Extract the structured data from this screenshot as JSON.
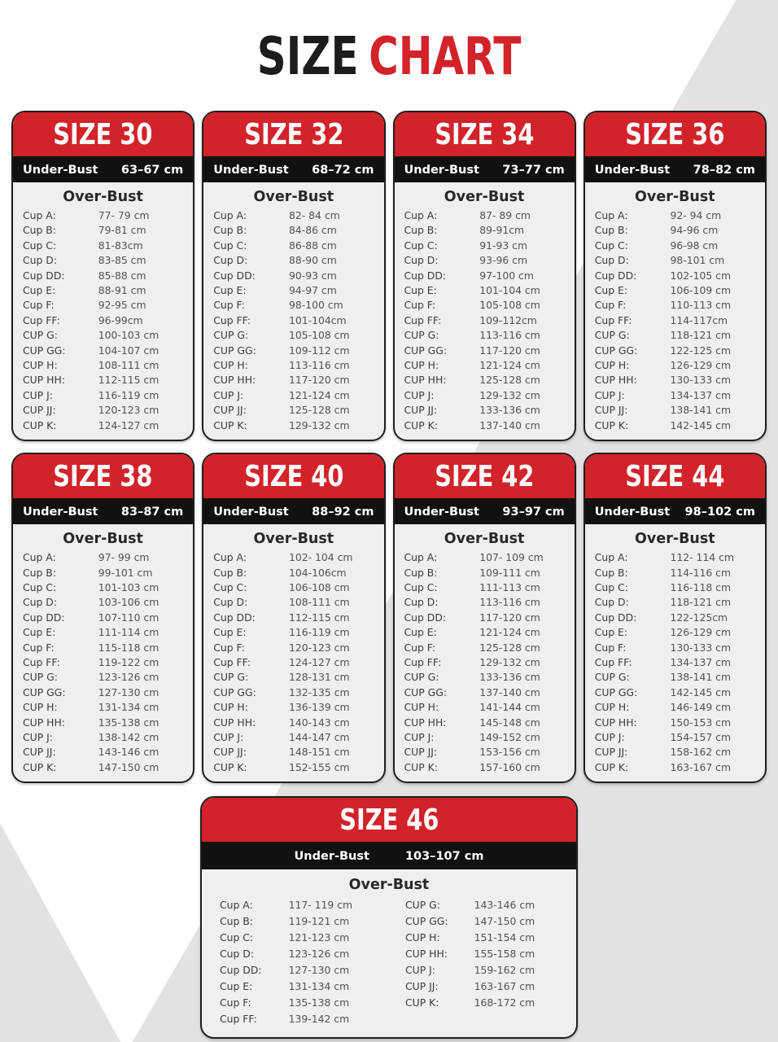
{
  "title": {
    "size": "SIZE",
    "chart": "CHART"
  },
  "labels": {
    "under_bust": "Under-Bust",
    "over_bust": "Over-Bust"
  },
  "colors": {
    "header_red": "#d2232a",
    "band_black": "#121110",
    "card_bg": "#f1efee",
    "page_gray": "#e3e2e2",
    "title_black": "#1d1c1b",
    "title_red": "#d2232a"
  },
  "cup_labels": [
    "Cup A:",
    "Cup B:",
    "Cup C:",
    "Cup D:",
    "Cup DD:",
    "Cup E:",
    "Cup F:",
    "Cup FF:",
    "CUP G:",
    "CUP GG:",
    "CUP H:",
    "CUP HH:",
    "CUP J:",
    "CUP JJ:",
    "CUP K:"
  ],
  "cards": [
    {
      "size_label": "SIZE 30",
      "under_bust": "63–67 cm",
      "ranges": [
        "77- 79 cm",
        "79-81 cm",
        "81-83cm",
        "83-85 cm",
        "85-88 cm",
        "88-91 cm",
        "92-95 cm",
        "96-99cm",
        "100-103 cm",
        "104-107 cm",
        "108-111 cm",
        "112-115 cm",
        "116-119 cm",
        "120-123 cm",
        "124-127 cm"
      ]
    },
    {
      "size_label": "SIZE 32",
      "under_bust": "68–72 cm",
      "ranges": [
        "82- 84 cm",
        "84-86 cm",
        "86-88 cm",
        "88-90 cm",
        "90-93 cm",
        "94-97 cm",
        "98-100 cm",
        "101-104cm",
        "105-108 cm",
        "109-112 cm",
        "113-116 cm",
        "117-120 cm",
        "121-124 cm",
        "125-128 cm",
        "129-132 cm"
      ]
    },
    {
      "size_label": "SIZE 34",
      "under_bust": "73–77 cm",
      "ranges": [
        "87- 89 cm",
        "89-91cm",
        "91-93 cm",
        "93-96 cm",
        "97-100 cm",
        "101-104 cm",
        "105-108 cm",
        "109-112cm",
        "113-116 cm",
        "117-120 cm",
        "121-124 cm",
        "125-128 cm",
        "129-132 cm",
        "133-136 cm",
        "137-140 cm"
      ]
    },
    {
      "size_label": "SIZE 36",
      "under_bust": "78–82 cm",
      "ranges": [
        "92- 94 cm",
        "94-96 cm",
        "96-98 cm",
        "98-101 cm",
        "102-105 cm",
        "106-109 cm",
        "110-113 cm",
        "114-117cm",
        "118-121 cm",
        "122-125 cm",
        "126-129 cm",
        "130-133 cm",
        "134-137 cm",
        "138-141 cm",
        "142-145 cm"
      ]
    },
    {
      "size_label": "SIZE 38",
      "under_bust": "83–87 cm",
      "ranges": [
        "97- 99 cm",
        "99-101 cm",
        "101-103 cm",
        "103-106 cm",
        "107-110 cm",
        "111-114 cm",
        "115-118 cm",
        "119-122 cm",
        "123-126 cm",
        "127-130 cm",
        "131-134 cm",
        "135-138 cm",
        "138-142 cm",
        "143-146 cm",
        "147-150 cm"
      ]
    },
    {
      "size_label": "SIZE 40",
      "under_bust": "88–92 cm",
      "ranges": [
        "102- 104 cm",
        "104-106cm",
        "106-108 cm",
        "108-111 cm",
        "112-115 cm",
        "116-119 cm",
        "120-123 cm",
        "124-127 cm",
        "128-131 cm",
        "132-135 cm",
        "136-139 cm",
        "140-143 cm",
        "144-147 cm",
        "148-151 cm",
        "152-155 cm"
      ]
    },
    {
      "size_label": "SIZE 42",
      "under_bust": "93–97 cm",
      "ranges": [
        "107- 109 cm",
        "109-111 cm",
        "111-113 cm",
        "113-116 cm",
        "117-120 cm",
        "121-124 cm",
        "125-128 cm",
        "129-132 cm",
        "133-136 cm",
        "137-140 cm",
        "141-144 cm",
        "145-148 cm",
        "149-152 cm",
        "153-156 cm",
        "157-160 cm"
      ]
    },
    {
      "size_label": "SIZE 44",
      "under_bust": "98–102 cm",
      "ranges": [
        "112- 114 cm",
        "114-116 cm",
        "116-118 cm",
        "118-121 cm",
        "122-125cm",
        "126-129 cm",
        "130-133 cm",
        "134-137 cm",
        "138-141 cm",
        "142-145 cm",
        "146-149 cm",
        "150-153 cm",
        "154-157 cm",
        "158-162 cm",
        "163-167 cm"
      ]
    },
    {
      "size_label": "SIZE 46",
      "under_bust": "103–107 cm",
      "two_column": true,
      "ranges": [
        "117- 119 cm",
        "119-121 cm",
        "121-123 cm",
        "123-126 cm",
        "127-130 cm",
        "131-134 cm",
        "135-138 cm",
        "139-142 cm",
        "143-146 cm",
        "147-150 cm",
        "151-154 cm",
        "155-158 cm",
        "159-162 cm",
        "163-167 cm",
        "168-172 cm"
      ]
    }
  ]
}
